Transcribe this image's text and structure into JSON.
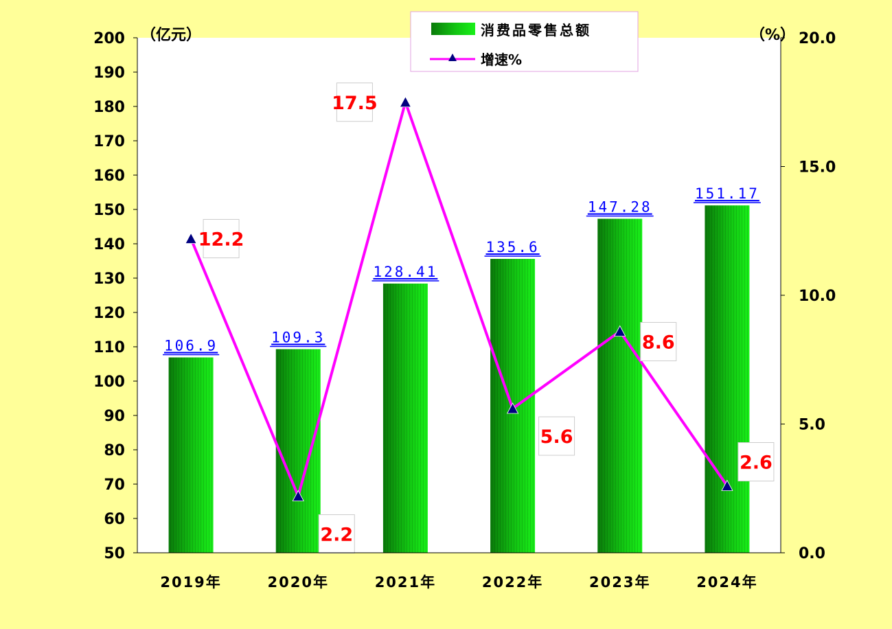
{
  "chart_data": {
    "type": "bar",
    "categories": [
      "2019年",
      "2020年",
      "2021年",
      "2022年",
      "2023年",
      "2024年"
    ],
    "series": [
      {
        "name": "消费品零售总额",
        "type": "bar",
        "axis": "left",
        "values": [
          106.9,
          109.3,
          128.41,
          135.6,
          147.28,
          151.17
        ],
        "labels": [
          "106.9",
          "109.3",
          "128.41",
          "135.6",
          "147.28",
          "151.17"
        ]
      },
      {
        "name": "增速%",
        "type": "line",
        "axis": "right",
        "values": [
          12.2,
          2.2,
          17.5,
          5.6,
          8.6,
          2.6
        ],
        "labels": [
          "12.2",
          "2.2",
          "17.5",
          "5.6",
          "8.6",
          "2.6"
        ]
      }
    ],
    "y_left": {
      "unit": "（亿元）",
      "range": [
        50,
        200
      ],
      "ticks": [
        "50",
        "60",
        "70",
        "80",
        "90",
        "100",
        "110",
        "120",
        "130",
        "140",
        "150",
        "160",
        "170",
        "180",
        "190",
        "200"
      ]
    },
    "y_right": {
      "unit": "（%）",
      "range": [
        0,
        20
      ],
      "ticks": [
        "0.0",
        "5.0",
        "10.0",
        "15.0",
        "20.0"
      ]
    },
    "legend_position": "top-center",
    "grid": false,
    "colors": {
      "page_background": "#ffff99",
      "plot_background": "#ffffff",
      "bar_dark": "#0a7a0a",
      "bar_light": "#19f019",
      "line": "#ff00ff",
      "marker": "#000080",
      "bar_label": "#0000ff",
      "line_label": "#ff0000"
    }
  }
}
